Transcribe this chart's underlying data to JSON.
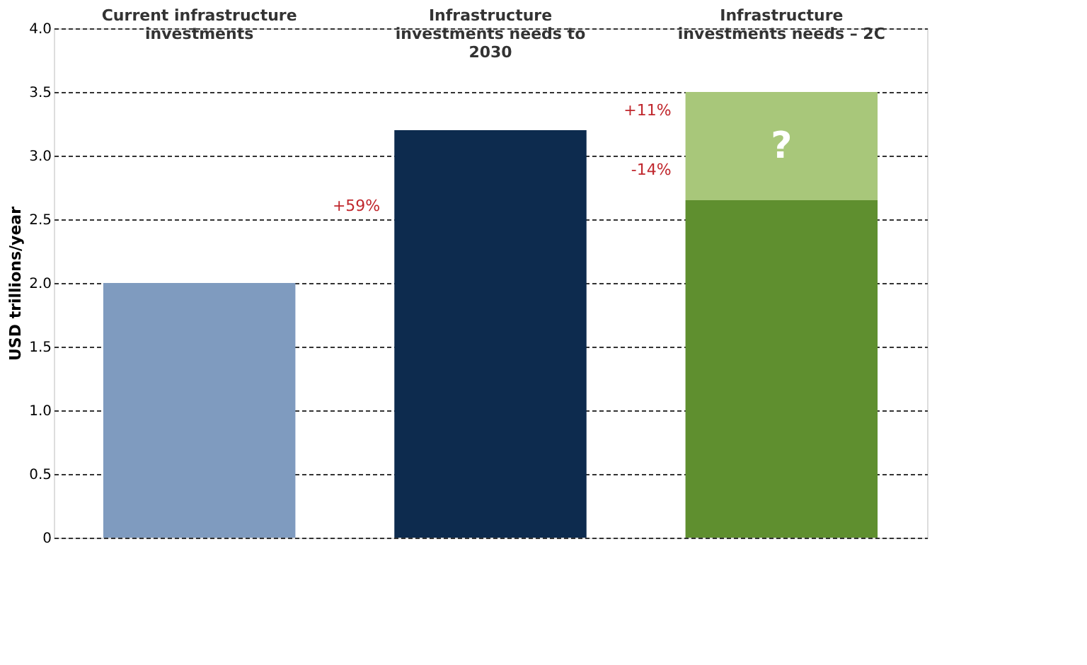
{
  "chart_data": {
    "type": "bar",
    "stacked": true,
    "categories": [
      "Current infrastructure investments",
      "Infrastructure investments needs to 2030",
      "Infrastructure investments needs – 2C"
    ],
    "series": [
      {
        "colors": [
          "#7f9bbf",
          "#0d2b4e",
          "#5f8f2f"
        ],
        "values": [
          2.0,
          3.2,
          2.65
        ]
      },
      {
        "colors": [
          "#a8c77a",
          "#a8c77a",
          "#a8c77a"
        ],
        "values": [
          null,
          null,
          0.85
        ],
        "value_labels": [
          null,
          null,
          "?"
        ]
      }
    ],
    "ylabel": "USD trillions/year",
    "ylim": [
      0,
      4.0
    ],
    "yticks": [
      {
        "value": 0,
        "label": "0"
      },
      {
        "value": 0.5,
        "label": "0.5"
      },
      {
        "value": 1.0,
        "label": "1.0"
      },
      {
        "value": 1.5,
        "label": "1.5"
      },
      {
        "value": 2.0,
        "label": "2.0"
      },
      {
        "value": 2.5,
        "label": "2.5"
      },
      {
        "value": 3.0,
        "label": "3.0"
      },
      {
        "value": 3.5,
        "label": "3.5"
      },
      {
        "value": 4.0,
        "label": "4.0"
      }
    ],
    "grid": "y",
    "legend": false,
    "annotations": [
      "+59%",
      "+11%",
      "-14%"
    ]
  }
}
